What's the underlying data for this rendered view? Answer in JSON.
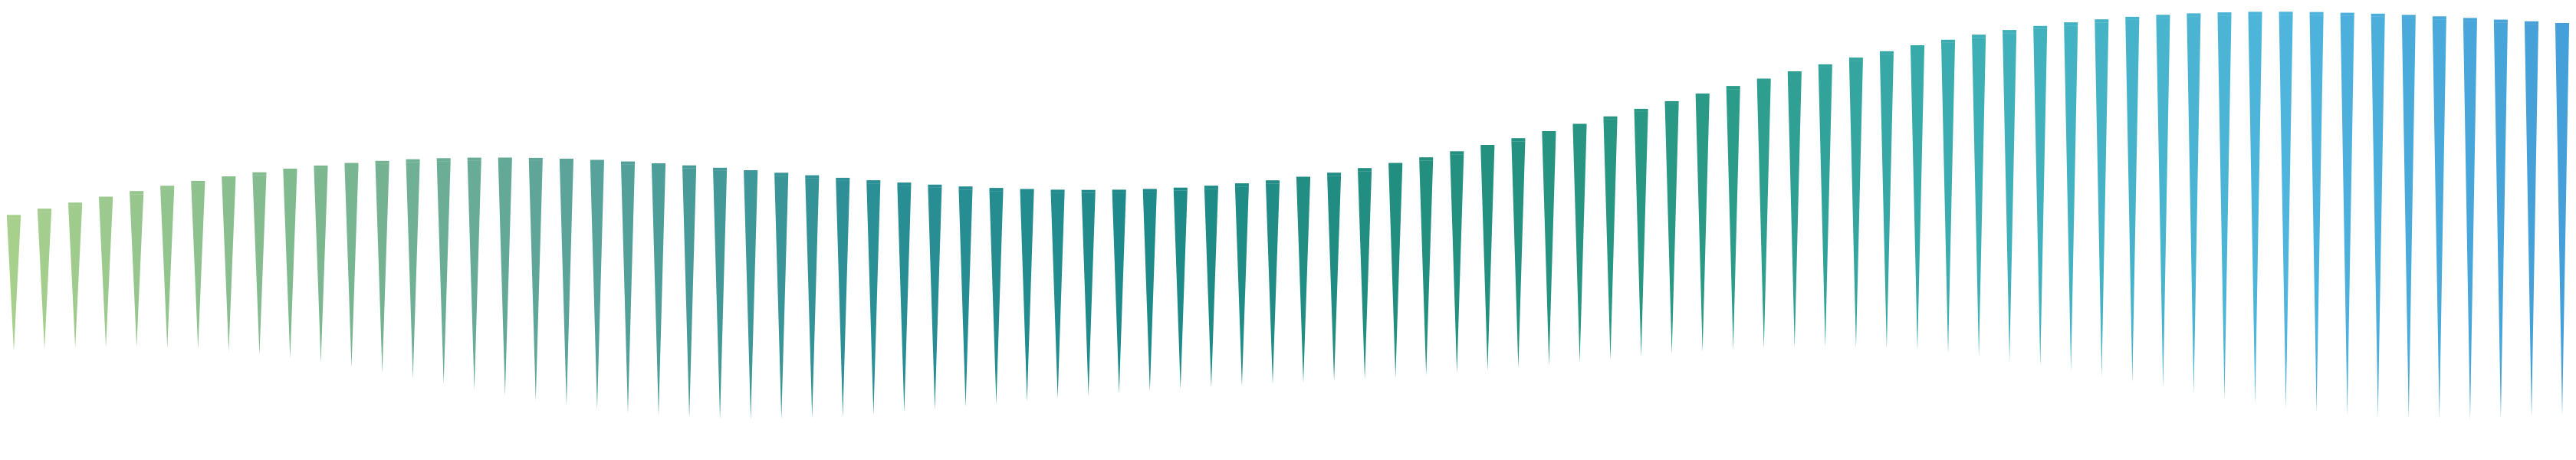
{
  "artwork": {
    "kind": "decorative-spike-wave",
    "spike_count": 84,
    "palette": [
      "#a8d08d",
      "#7fb98f",
      "#5aa39a",
      "#2b8f96",
      "#1e8a8a",
      "#238f7e",
      "#2a9a86",
      "#3fb0b8",
      "#4fb6dd",
      "#459fd8"
    ]
  }
}
